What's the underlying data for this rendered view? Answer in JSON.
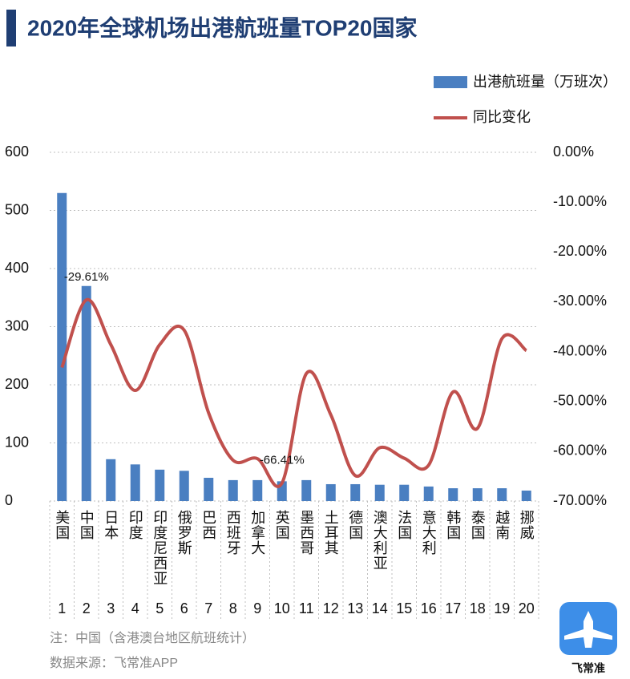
{
  "chart_data": {
    "type": "bar_line",
    "title": "2020年全球机场出港航班量TOP20国家",
    "categories": [
      "美国",
      "中国",
      "日本",
      "印度",
      "印度尼西亚",
      "俄罗斯",
      "巴西",
      "西班牙",
      "加拿大",
      "英国",
      "墨西哥",
      "土耳其",
      "德国",
      "澳大利亚",
      "法国",
      "意大利",
      "韩国",
      "泰国",
      "越南",
      "挪威"
    ],
    "ranks": [
      1,
      2,
      3,
      4,
      5,
      6,
      7,
      8,
      9,
      10,
      11,
      12,
      13,
      14,
      15,
      16,
      17,
      18,
      19,
      20
    ],
    "series": [
      {
        "name": "出港航班量（万班次）",
        "type": "bar",
        "color": "#4a7fc1",
        "values": [
          530,
          370,
          72,
          63,
          54,
          52,
          40,
          36,
          36,
          34,
          36,
          29,
          29,
          28,
          28,
          25,
          22,
          22,
          22,
          18
        ]
      },
      {
        "name": "同比变化",
        "type": "line",
        "axis": "y2",
        "color": "#c0504d",
        "values": [
          -43.2,
          -29.61,
          -38.6,
          -47.8,
          -38.6,
          -35.7,
          -52.3,
          -61.8,
          -61.5,
          -66.41,
          -44.4,
          -52.7,
          -64.9,
          -59.3,
          -61.4,
          -62.8,
          -48.1,
          -55.4,
          -37.4,
          -39.8
        ],
        "value_labels": [
          null,
          "-29.61%",
          null,
          null,
          null,
          null,
          null,
          null,
          null,
          "-66.41%",
          null,
          null,
          null,
          null,
          null,
          null,
          null,
          null,
          null,
          null
        ]
      }
    ],
    "ylim": [
      0,
      600
    ],
    "yticks": [
      0,
      100,
      200,
      300,
      400,
      500,
      600
    ],
    "y2lim": [
      -70,
      0
    ],
    "y2ticks": [
      {
        "value": 0,
        "label": "0.00%"
      },
      {
        "value": -10,
        "label": "-10.00%"
      },
      {
        "value": -20,
        "label": "-20.00%"
      },
      {
        "value": -30,
        "label": "-30.00%"
      },
      {
        "value": -40,
        "label": "-40.00%"
      },
      {
        "value": -50,
        "label": "-50.00%"
      },
      {
        "value": -60,
        "label": "-60.00%"
      },
      {
        "value": -70,
        "label": "-70.00%"
      }
    ],
    "grid": true,
    "notes": [
      "注：中国（含港澳台地区航班统计）",
      "数据来源：飞常准APP"
    ],
    "logo_text": "飞常准"
  }
}
